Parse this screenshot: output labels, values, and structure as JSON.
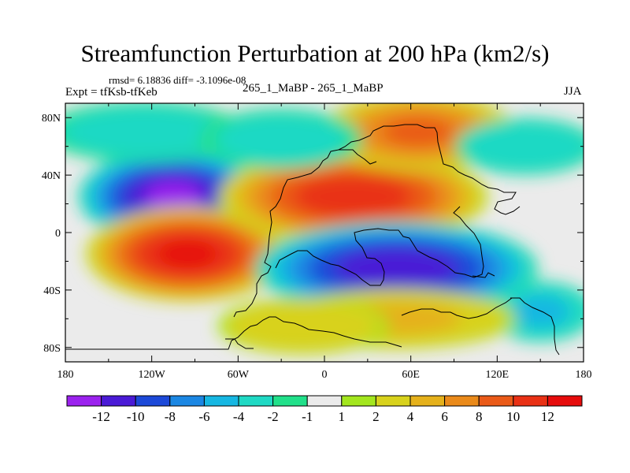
{
  "chart_data": {
    "type": "heatmap",
    "title": "Streamfunction Perturbation at 200 hPa (km2/s)",
    "stats_text": "rmsd= 6.18836 diff= -3.1096e-08",
    "left_label": "Expt = tfKsb-tfKeb",
    "center_label": "265_1_MaBP - 265_1_MaBP",
    "right_label": "JJA",
    "x_ticks": [
      "180",
      "120W",
      "60W",
      "0",
      "60E",
      "120E",
      "180"
    ],
    "y_ticks": [
      "80N",
      "40N",
      "0",
      "40S",
      "80S"
    ],
    "xlim": [
      -180,
      180
    ],
    "ylim": [
      -90,
      90
    ],
    "colorbar_labels": [
      "-12",
      "-10",
      "-8",
      "-6",
      "-4",
      "-2",
      "-1",
      "1",
      "2",
      "4",
      "6",
      "8",
      "10",
      "12"
    ],
    "colorbar_colors": [
      "#9b22ee",
      "#4a1ad6",
      "#1c49d8",
      "#1b87e3",
      "#16b7e2",
      "#1fd9c4",
      "#21e08a",
      "#ebebeb",
      "#a3e61e",
      "#d8d21c",
      "#e5b11b",
      "#ea8a1a",
      "#ea5a18",
      "#e93115",
      "#e60c0c"
    ],
    "features": [
      {
        "lon": -105,
        "lat": 25,
        "value": -13,
        "sx": 28,
        "sy": 14
      },
      {
        "lon": -95,
        "lat": -15,
        "value": 13,
        "sx": 30,
        "sy": 14
      },
      {
        "lon": 20,
        "lat": 25,
        "value": 12,
        "sx": 40,
        "sy": 14
      },
      {
        "lon": 50,
        "lat": -25,
        "value": -12,
        "sx": 42,
        "sy": 14
      },
      {
        "lon": 65,
        "lat": 70,
        "value": 9,
        "sx": 30,
        "sy": 12
      },
      {
        "lon": -125,
        "lat": 70,
        "value": -3,
        "sx": 40,
        "sy": 12
      },
      {
        "lon": -30,
        "lat": 65,
        "value": -3,
        "sx": 32,
        "sy": 12
      },
      {
        "lon": 140,
        "lat": 60,
        "value": -4,
        "sx": 25,
        "sy": 10
      },
      {
        "lon": 150,
        "lat": -55,
        "value": -5,
        "sx": 18,
        "sy": 10
      },
      {
        "lon": 50,
        "lat": -60,
        "value": 5,
        "sx": 40,
        "sy": 10
      },
      {
        "lon": -15,
        "lat": -65,
        "value": 4,
        "sx": 30,
        "sy": 10
      }
    ]
  }
}
